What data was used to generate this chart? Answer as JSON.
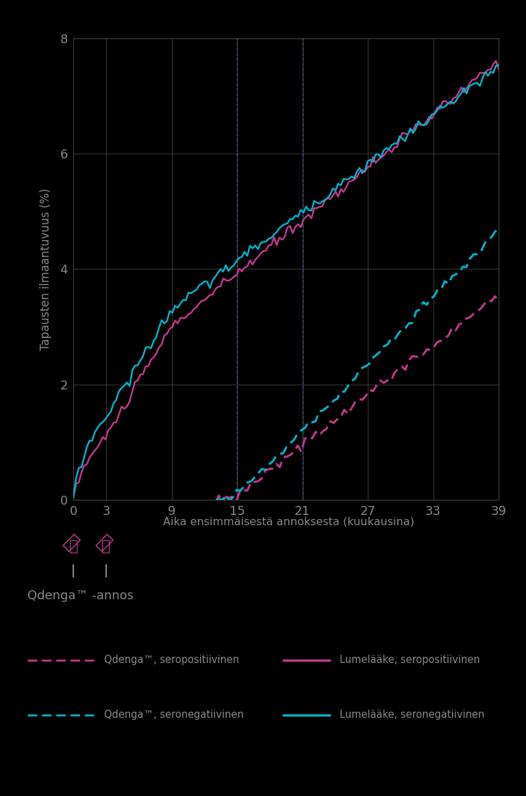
{
  "title": "",
  "ylabel": "Tapausten ilmaantuvuus (%)",
  "xlabel": "Aika ensimmäisestä annoksesta (kuukausina)",
  "xlim": [
    0,
    39
  ],
  "ylim": [
    0,
    8
  ],
  "xticks": [
    0,
    3,
    9,
    15,
    21,
    27,
    33,
    39
  ],
  "yticks": [
    0,
    2,
    4,
    6,
    8
  ],
  "background_color": "#000000",
  "plot_bg_color": "#000000",
  "text_color": "#888888",
  "color_seropositif": "#c0398a",
  "color_seronegat": "#00b4c8",
  "legend_labels": [
    "Qdenga™, seropositiivinen",
    "Lumelääke, seropositiivinen",
    "Qdenga™, seronegatiivinen",
    "Lumelääke, seronegatiivinen"
  ],
  "dose_label": "Qdenga™ -annos",
  "vline1_x": 15,
  "vline2_x": 21
}
